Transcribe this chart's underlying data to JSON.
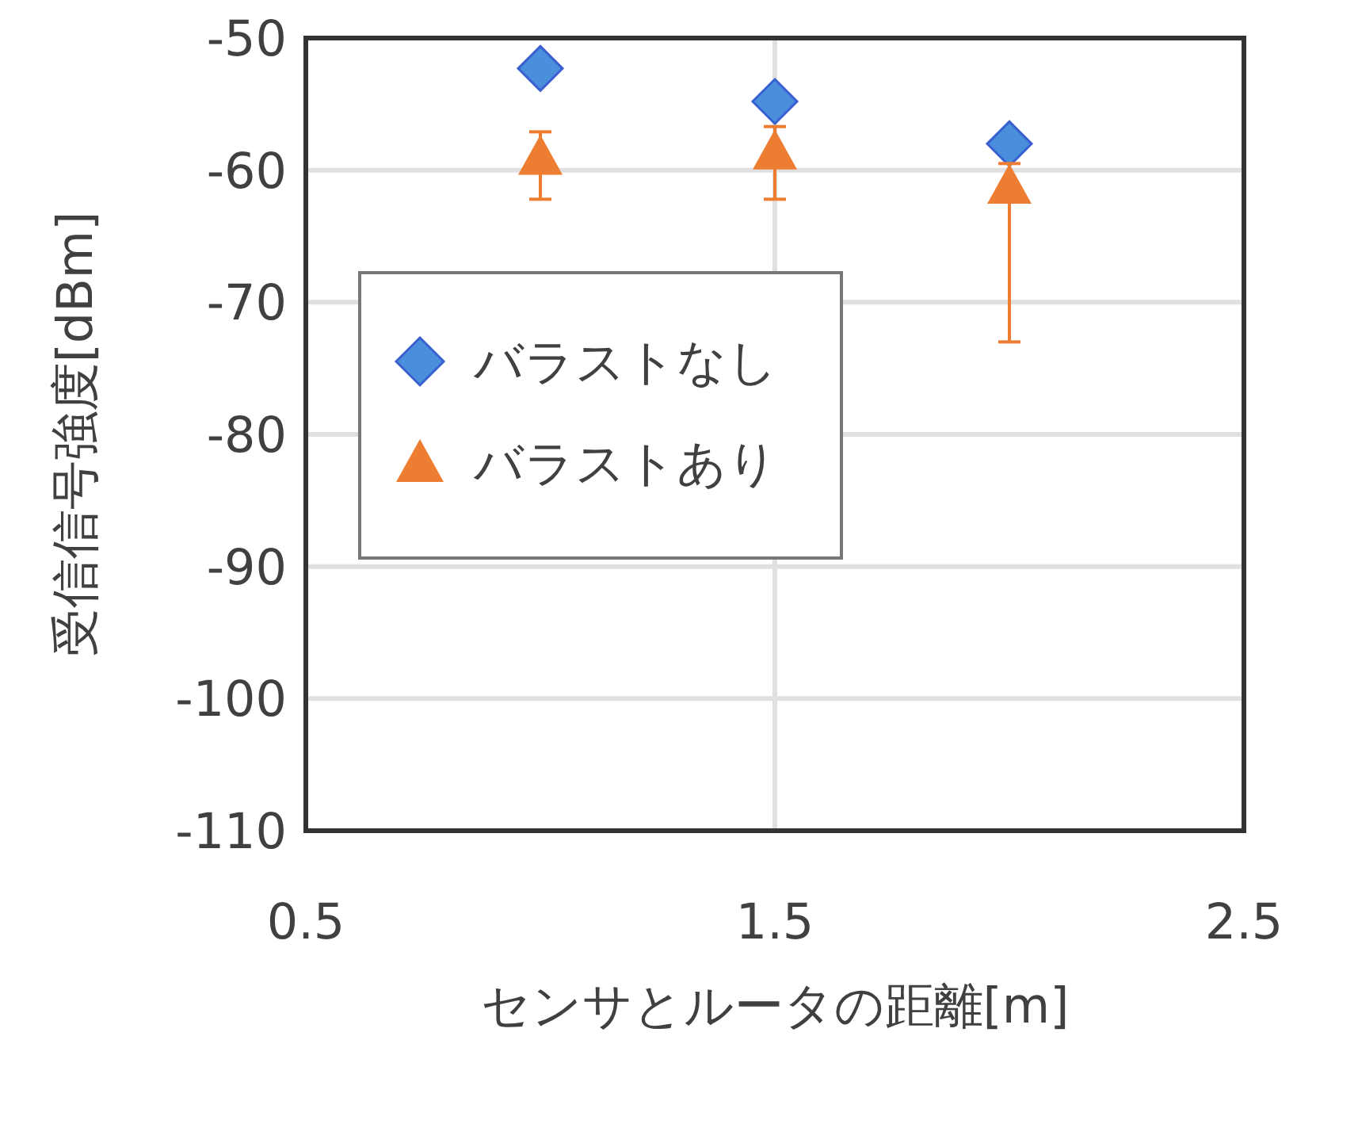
{
  "chart_data": {
    "type": "scatter",
    "xlabel": "センサとルータの距離[m]",
    "ylabel": "受信信号強度[dBm]",
    "x": [
      1.0,
      1.5,
      2.0
    ],
    "series": [
      {
        "name": "バラストなし",
        "color": "#4a8fdc",
        "marker": "diamond",
        "values": [
          -52.3,
          -54.8,
          -58.0
        ]
      },
      {
        "name": "バラストあり",
        "color": "#ed7d31",
        "marker": "triangle",
        "values": [
          -59.0,
          -58.6,
          -61.2
        ],
        "errors": [
          [
            -62.2,
            -57.1
          ],
          [
            -62.2,
            -56.7
          ],
          [
            -73.0,
            -59.5
          ]
        ]
      }
    ],
    "xlim": [
      0.5,
      2.5
    ],
    "xticks": [
      0.5,
      1.5,
      2.5
    ],
    "ylim": [
      -110,
      -50
    ],
    "yticks": [
      -110,
      -100,
      -90,
      -80,
      -70,
      -60,
      -50
    ],
    "grid": true,
    "legend": "left"
  }
}
